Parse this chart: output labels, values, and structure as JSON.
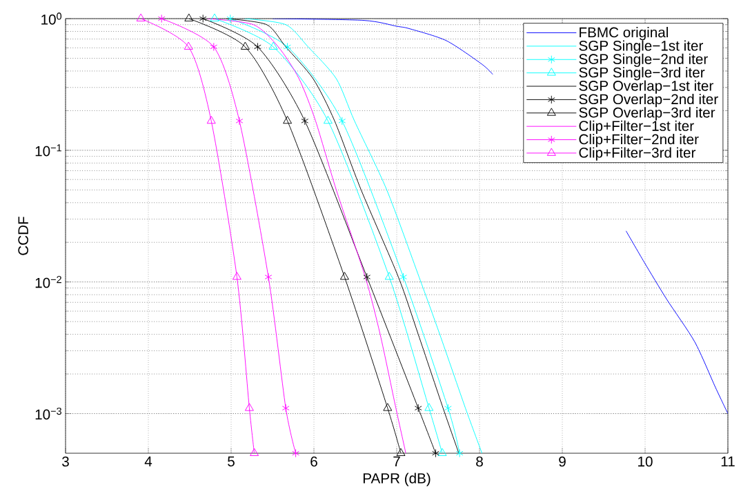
{
  "chart_data": {
    "type": "line",
    "xlabel": "PAPR (dB)",
    "ylabel": "CCDF",
    "xlim": [
      3,
      11
    ],
    "ylim": [
      0.0005,
      1
    ],
    "log": "y",
    "grid": true,
    "legend": "top right",
    "line_style": "solid",
    "xticks": [
      3,
      4,
      5,
      6,
      7,
      8,
      9,
      10,
      11
    ],
    "yticks": [
      {
        "value": 0.001,
        "label": "10$^{−3}$"
      },
      {
        "value": 0.01,
        "label": "10$^{−2}$"
      },
      {
        "value": 0.1,
        "label": "10$^{−1}$"
      },
      {
        "value": 1,
        "label": "10$^{0}$"
      }
    ],
    "series": [
      {
        "name": "FBMC original",
        "color": "#0000ff",
        "marker": "none",
        "x": [
          5.5,
          6.6,
          7.0,
          7.15,
          7.6,
          8.03,
          8.16,
          9.0,
          9.77,
          9.99,
          10.26,
          10.6,
          10.85,
          11.0
        ],
        "values": [
          1,
          0.97,
          0.875,
          0.84,
          0.68,
          0.45,
          0.377,
          null,
          0.0244,
          0.0141,
          0.0074,
          0.0035,
          0.00158,
          0.001
        ]
      },
      {
        "name": "SGP Single−1st iter",
        "color": "#00ffff",
        "marker": "none",
        "x": [
          5.16,
          5.66,
          5.93,
          6.27,
          6.49,
          6.88,
          7.27,
          7.52,
          7.83,
          8.03
        ],
        "values": [
          1,
          0.9,
          0.61,
          0.35,
          0.167,
          0.05,
          0.0109,
          0.004,
          0.0011,
          0.0005
        ]
      },
      {
        "name": "SGP Single−2nd iter",
        "color": "#00ffff",
        "marker": "cross",
        "x": [
          4.99,
          5.68,
          6.34,
          7.08,
          7.62,
          7.76
        ],
        "values": [
          1,
          0.61,
          0.167,
          0.0109,
          0.0011,
          0.0005
        ]
      },
      {
        "name": "SGP Single−3rd iter",
        "color": "#00ffff",
        "marker": "triangle",
        "x": [
          4.8,
          5.51,
          6.17,
          6.91,
          7.39,
          7.55
        ],
        "values": [
          1,
          0.61,
          0.167,
          0.0109,
          0.0011,
          0.0005
        ]
      },
      {
        "name": "SGP Overlap−1st iter",
        "color": "#000000",
        "marker": "none",
        "x": [
          4.94,
          5.43,
          5.66,
          5.99,
          6.25,
          6.57,
          7.02,
          7.26,
          7.56,
          7.75
        ],
        "values": [
          1,
          0.9,
          0.61,
          0.35,
          0.167,
          0.05,
          0.0109,
          0.004,
          0.0011,
          0.0005
        ]
      },
      {
        "name": "SGP Overlap−2nd iter",
        "color": "#000000",
        "marker": "cross",
        "x": [
          4.66,
          5.32,
          5.89,
          6.64,
          7.26,
          7.47
        ],
        "values": [
          1,
          0.61,
          0.167,
          0.0109,
          0.0011,
          0.0005
        ]
      },
      {
        "name": "SGP Overlap−3rd iter",
        "color": "#000000",
        "marker": "triangle",
        "x": [
          4.49,
          5.17,
          5.68,
          6.37,
          6.89,
          7.05
        ],
        "values": [
          1,
          0.61,
          0.167,
          0.0109,
          0.0011,
          0.0005
        ]
      },
      {
        "name": "Clip+Filter−1st iter",
        "color": "#ff00ff",
        "marker": "none",
        "x": [
          4.71,
          5.27,
          5.57,
          5.82,
          6.02,
          6.27,
          6.62,
          6.8,
          6.99,
          7.11
        ],
        "values": [
          1,
          0.9,
          0.61,
          0.35,
          0.167,
          0.05,
          0.0109,
          0.004,
          0.0011,
          0.0005
        ]
      },
      {
        "name": "Clip+Filter−2nd iter",
        "color": "#ff00ff",
        "marker": "cross",
        "x": [
          4.16,
          4.79,
          5.1,
          5.45,
          5.66,
          5.78
        ],
        "values": [
          1,
          0.61,
          0.167,
          0.0109,
          0.0011,
          0.0005
        ]
      },
      {
        "name": "Clip+Filter−3rd iter",
        "color": "#ff00ff",
        "marker": "triangle",
        "x": [
          3.91,
          4.485,
          4.76,
          5.07,
          5.22,
          5.28
        ],
        "values": [
          1,
          0.61,
          0.167,
          0.0109,
          0.0011,
          0.0005
        ]
      }
    ]
  }
}
